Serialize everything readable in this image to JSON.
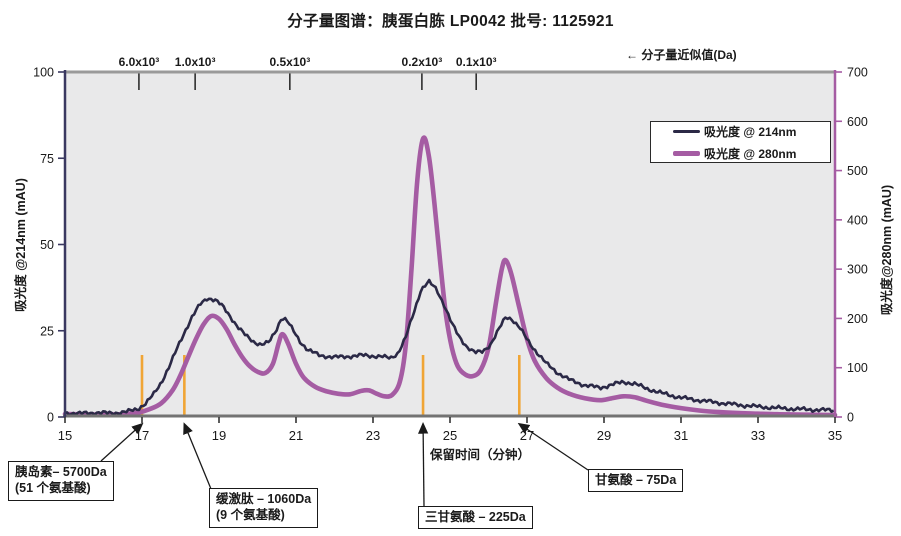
{
  "title": "分子量图谱：胰蛋白胨 LP0042  批号: 1125921",
  "top_axis": {
    "note": "← 分子量近似值(Da)",
    "ticks": [
      {
        "label": "6.0x10³",
        "time": 16.92
      },
      {
        "label": "1.0x10³",
        "time": 18.38
      },
      {
        "label": "0.5x10³",
        "time": 20.84
      },
      {
        "label": "0.2x10³",
        "time": 24.27
      },
      {
        "label": "0.1x10³",
        "time": 25.68
      }
    ]
  },
  "chart_data": {
    "type": "line",
    "title": "分子量图谱：胰蛋白胨 LP0042  批号: 1125921",
    "xlabel": "保留时间（分钟）",
    "ylabel_left": "吸光度 @214nm (mAU)",
    "ylabel_right": "吸光度@280nm (mAU)",
    "xlim": [
      15,
      35
    ],
    "ylim_left": [
      0,
      100
    ],
    "ylim_right": [
      0,
      700
    ],
    "x_ticks": [
      15,
      17,
      19,
      21,
      23,
      25,
      27,
      29,
      31,
      33,
      35
    ],
    "y_ticks_left": [
      0,
      25,
      50,
      75,
      100
    ],
    "y_ticks_right": [
      0,
      100,
      200,
      300,
      400,
      500,
      600,
      700
    ],
    "grid": false,
    "legend_position": "top-right",
    "series": [
      {
        "name": "吸光度 @ 214nm",
        "axis": "left",
        "color": "#2b2946",
        "width": 2.6,
        "points": [
          [
            15,
            1.2
          ],
          [
            15.4,
            1.0
          ],
          [
            15.8,
            1.3
          ],
          [
            16.2,
            1.1
          ],
          [
            16.6,
            1.5
          ],
          [
            16.9,
            2.4
          ],
          [
            17.1,
            4
          ],
          [
            17.3,
            6.5
          ],
          [
            17.5,
            10
          ],
          [
            17.7,
            14.5
          ],
          [
            17.9,
            19.5
          ],
          [
            18.1,
            24.5
          ],
          [
            18.3,
            29
          ],
          [
            18.5,
            32.5
          ],
          [
            18.7,
            34.5
          ],
          [
            18.9,
            34
          ],
          [
            19.1,
            32
          ],
          [
            19.3,
            29
          ],
          [
            19.5,
            26
          ],
          [
            19.7,
            23.5
          ],
          [
            19.9,
            21.8
          ],
          [
            20.1,
            21
          ],
          [
            20.3,
            21.6
          ],
          [
            20.5,
            25.5
          ],
          [
            20.62,
            28.8
          ],
          [
            20.75,
            28.2
          ],
          [
            20.9,
            25.5
          ],
          [
            21.1,
            22
          ],
          [
            21.3,
            19.5
          ],
          [
            21.6,
            17.9
          ],
          [
            22,
            17.3
          ],
          [
            22.4,
            17.6
          ],
          [
            22.8,
            17.9
          ],
          [
            23.2,
            17.5
          ],
          [
            23.45,
            17.1
          ],
          [
            23.65,
            18.5
          ],
          [
            23.85,
            23
          ],
          [
            24.05,
            30
          ],
          [
            24.25,
            37
          ],
          [
            24.45,
            39.2
          ],
          [
            24.65,
            37
          ],
          [
            24.85,
            32.5
          ],
          [
            25.05,
            27
          ],
          [
            25.25,
            23
          ],
          [
            25.45,
            20.3
          ],
          [
            25.65,
            18.6
          ],
          [
            25.85,
            19
          ],
          [
            26.05,
            21
          ],
          [
            26.25,
            25
          ],
          [
            26.45,
            29
          ],
          [
            26.6,
            28.5
          ],
          [
            26.8,
            26
          ],
          [
            27,
            22.5
          ],
          [
            27.2,
            19.5
          ],
          [
            27.5,
            15.5
          ],
          [
            27.8,
            12.8
          ],
          [
            28.1,
            10.8
          ],
          [
            28.5,
            9.2
          ],
          [
            28.9,
            8.5
          ],
          [
            29.2,
            9.3
          ],
          [
            29.5,
            10.2
          ],
          [
            29.8,
            9.6
          ],
          [
            30.1,
            8.3
          ],
          [
            30.5,
            6.9
          ],
          [
            31,
            5.6
          ],
          [
            31.5,
            4.8
          ],
          [
            32,
            4.1
          ],
          [
            32.5,
            3.5
          ],
          [
            33,
            3
          ],
          [
            33.5,
            2.6
          ],
          [
            34,
            2.3
          ],
          [
            34.5,
            2.1
          ],
          [
            35,
            1.9
          ]
        ]
      },
      {
        "name": "吸光度 @ 280nm",
        "axis": "right",
        "color": "#a55ca3",
        "width": 4.6,
        "points": [
          [
            15,
            6
          ],
          [
            15.5,
            5
          ],
          [
            16,
            5
          ],
          [
            16.5,
            6
          ],
          [
            16.9,
            9
          ],
          [
            17.2,
            16
          ],
          [
            17.5,
            28
          ],
          [
            17.8,
            55
          ],
          [
            18,
            85
          ],
          [
            18.2,
            122
          ],
          [
            18.4,
            158
          ],
          [
            18.6,
            188
          ],
          [
            18.8,
            205
          ],
          [
            19,
            199
          ],
          [
            19.2,
            178
          ],
          [
            19.4,
            148
          ],
          [
            19.6,
            122
          ],
          [
            19.8,
            103
          ],
          [
            20,
            92
          ],
          [
            20.2,
            89
          ],
          [
            20.4,
            108
          ],
          [
            20.55,
            150
          ],
          [
            20.65,
            168
          ],
          [
            20.8,
            148
          ],
          [
            21,
            108
          ],
          [
            21.2,
            80
          ],
          [
            21.5,
            61
          ],
          [
            21.8,
            52
          ],
          [
            22.1,
            47
          ],
          [
            22.4,
            46
          ],
          [
            22.7,
            53
          ],
          [
            22.9,
            54
          ],
          [
            23.1,
            47
          ],
          [
            23.3,
            42
          ],
          [
            23.5,
            45
          ],
          [
            23.7,
            72
          ],
          [
            23.85,
            145
          ],
          [
            24,
            300
          ],
          [
            24.15,
            480
          ],
          [
            24.3,
            565
          ],
          [
            24.45,
            530
          ],
          [
            24.6,
            430
          ],
          [
            24.75,
            310
          ],
          [
            24.9,
            205
          ],
          [
            25.05,
            140
          ],
          [
            25.2,
            103
          ],
          [
            25.4,
            86
          ],
          [
            25.6,
            83
          ],
          [
            25.8,
            96
          ],
          [
            26,
            140
          ],
          [
            26.2,
            235
          ],
          [
            26.35,
            302
          ],
          [
            26.45,
            318
          ],
          [
            26.6,
            288
          ],
          [
            26.8,
            222
          ],
          [
            27,
            158
          ],
          [
            27.2,
            114
          ],
          [
            27.5,
            79
          ],
          [
            27.8,
            59
          ],
          [
            28.1,
            47
          ],
          [
            28.5,
            38
          ],
          [
            28.9,
            34
          ],
          [
            29.2,
            38
          ],
          [
            29.5,
            42
          ],
          [
            29.8,
            40
          ],
          [
            30.1,
            33
          ],
          [
            30.5,
            25
          ],
          [
            31,
            18
          ],
          [
            31.5,
            13
          ],
          [
            32,
            10
          ],
          [
            32.5,
            8
          ],
          [
            33,
            6.6
          ],
          [
            33.5,
            5.6
          ],
          [
            34,
            5
          ],
          [
            34.5,
            4.5
          ],
          [
            35,
            4
          ]
        ]
      }
    ],
    "markers": {
      "color": "#f0a535",
      "times": [
        17.0,
        18.1,
        24.3,
        26.8
      ]
    }
  },
  "annotations": [
    {
      "lines": [
        "胰岛素– 5700Da",
        "(51 个氨基酸)"
      ],
      "target_time": 17.0
    },
    {
      "lines": [
        "缓激肽 – 1060Da",
        "(9 个氨基酸)"
      ],
      "target_time": 18.1
    },
    {
      "lines": [
        "三甘氨酸 – 225Da"
      ],
      "target_time": 24.3
    },
    {
      "lines": [
        "甘氨酸 – 75Da"
      ],
      "target_time": 26.8
    }
  ],
  "colors": {
    "series_214": "#2b2946",
    "series_280": "#a55ca3",
    "marker": "#f0a535",
    "plot_bg": "#e9e9ea",
    "plot_border": "#9a9a9a",
    "bottom_axis": "#737373"
  }
}
